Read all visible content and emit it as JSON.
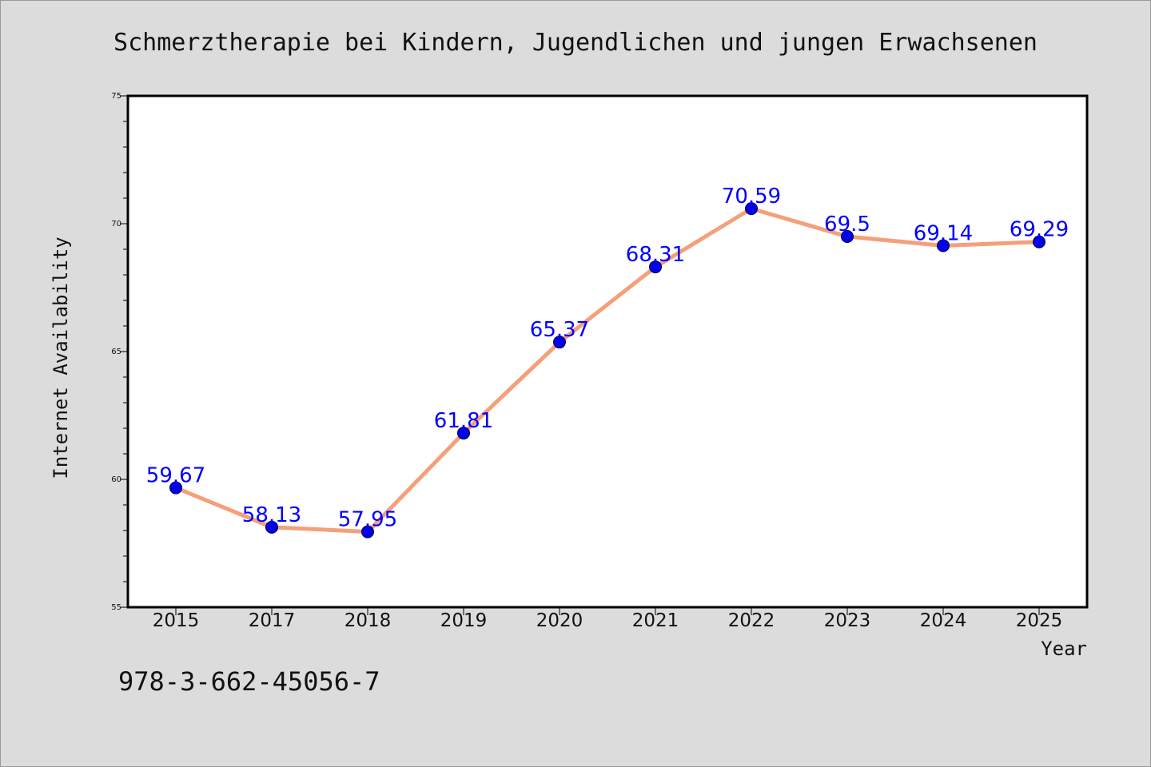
{
  "chart_data": {
    "type": "line",
    "title": "Schmerztherapie bei Kindern, Jugendlichen und jungen Erwachsenen",
    "xlabel": "Year",
    "ylabel": "Internet Availability",
    "categories": [
      "2015",
      "2017",
      "2018",
      "2019",
      "2020",
      "2021",
      "2022",
      "2023",
      "2024",
      "2025"
    ],
    "series": [
      {
        "values": [
          59.67,
          58.13,
          57.95,
          61.81,
          65.37,
          68.31,
          70.59,
          69.5,
          69.14,
          69.29
        ],
        "data_labels": [
          "59.67",
          "58.13",
          "57.95",
          "61.81",
          "65.37",
          "68.31",
          "70.59",
          "69.5",
          "69.14",
          "69.29"
        ]
      }
    ],
    "ylim": [
      55,
      75
    ],
    "yticks": [
      "55",
      "60",
      "65",
      "70",
      "75"
    ],
    "grid": false,
    "colors": {
      "line": "#f4a07a",
      "marker": "#0000ee",
      "label": "#0000ff",
      "background": "#dcdcdc",
      "plot_background": "#ffffff"
    }
  },
  "footer": {
    "isbn": "978-3-662-45056-7"
  }
}
